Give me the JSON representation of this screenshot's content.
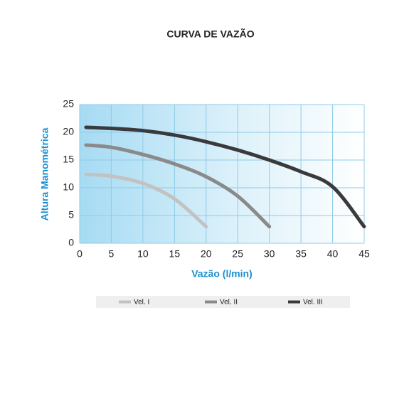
{
  "chart_data": {
    "type": "line",
    "title": "CURVA DE VAZÃO",
    "x_label": "Vazão (l/min)",
    "y_label": "Altura Manométrica",
    "xlim": [
      0,
      45
    ],
    "xticks": [
      0,
      5,
      10,
      15,
      20,
      25,
      30,
      35,
      40,
      45
    ],
    "ylim": [
      0,
      25
    ],
    "yticks": [
      0,
      5,
      10,
      15,
      20,
      25
    ],
    "grid": true,
    "legend": "bottom",
    "series": [
      {
        "name": "Vel. I",
        "color": "#c2c2c2",
        "x": [
          1,
          5,
          10,
          15,
          20
        ],
        "values": [
          12.4,
          12.1,
          10.8,
          8,
          3
        ]
      },
      {
        "name": "Vel. II",
        "color": "#8a8a8a",
        "x": [
          1,
          5,
          10,
          15,
          20,
          25,
          30
        ],
        "values": [
          17.7,
          17.3,
          16,
          14.3,
          12,
          8.5,
          3
        ]
      },
      {
        "name": "Vel. III",
        "color": "#3a3a3c",
        "x": [
          1,
          5,
          10,
          15,
          20,
          25,
          30,
          35,
          40,
          45
        ],
        "values": [
          20.9,
          20.7,
          20.3,
          19.5,
          18.3,
          16.8,
          15,
          12.9,
          10.2,
          3
        ]
      }
    ]
  }
}
